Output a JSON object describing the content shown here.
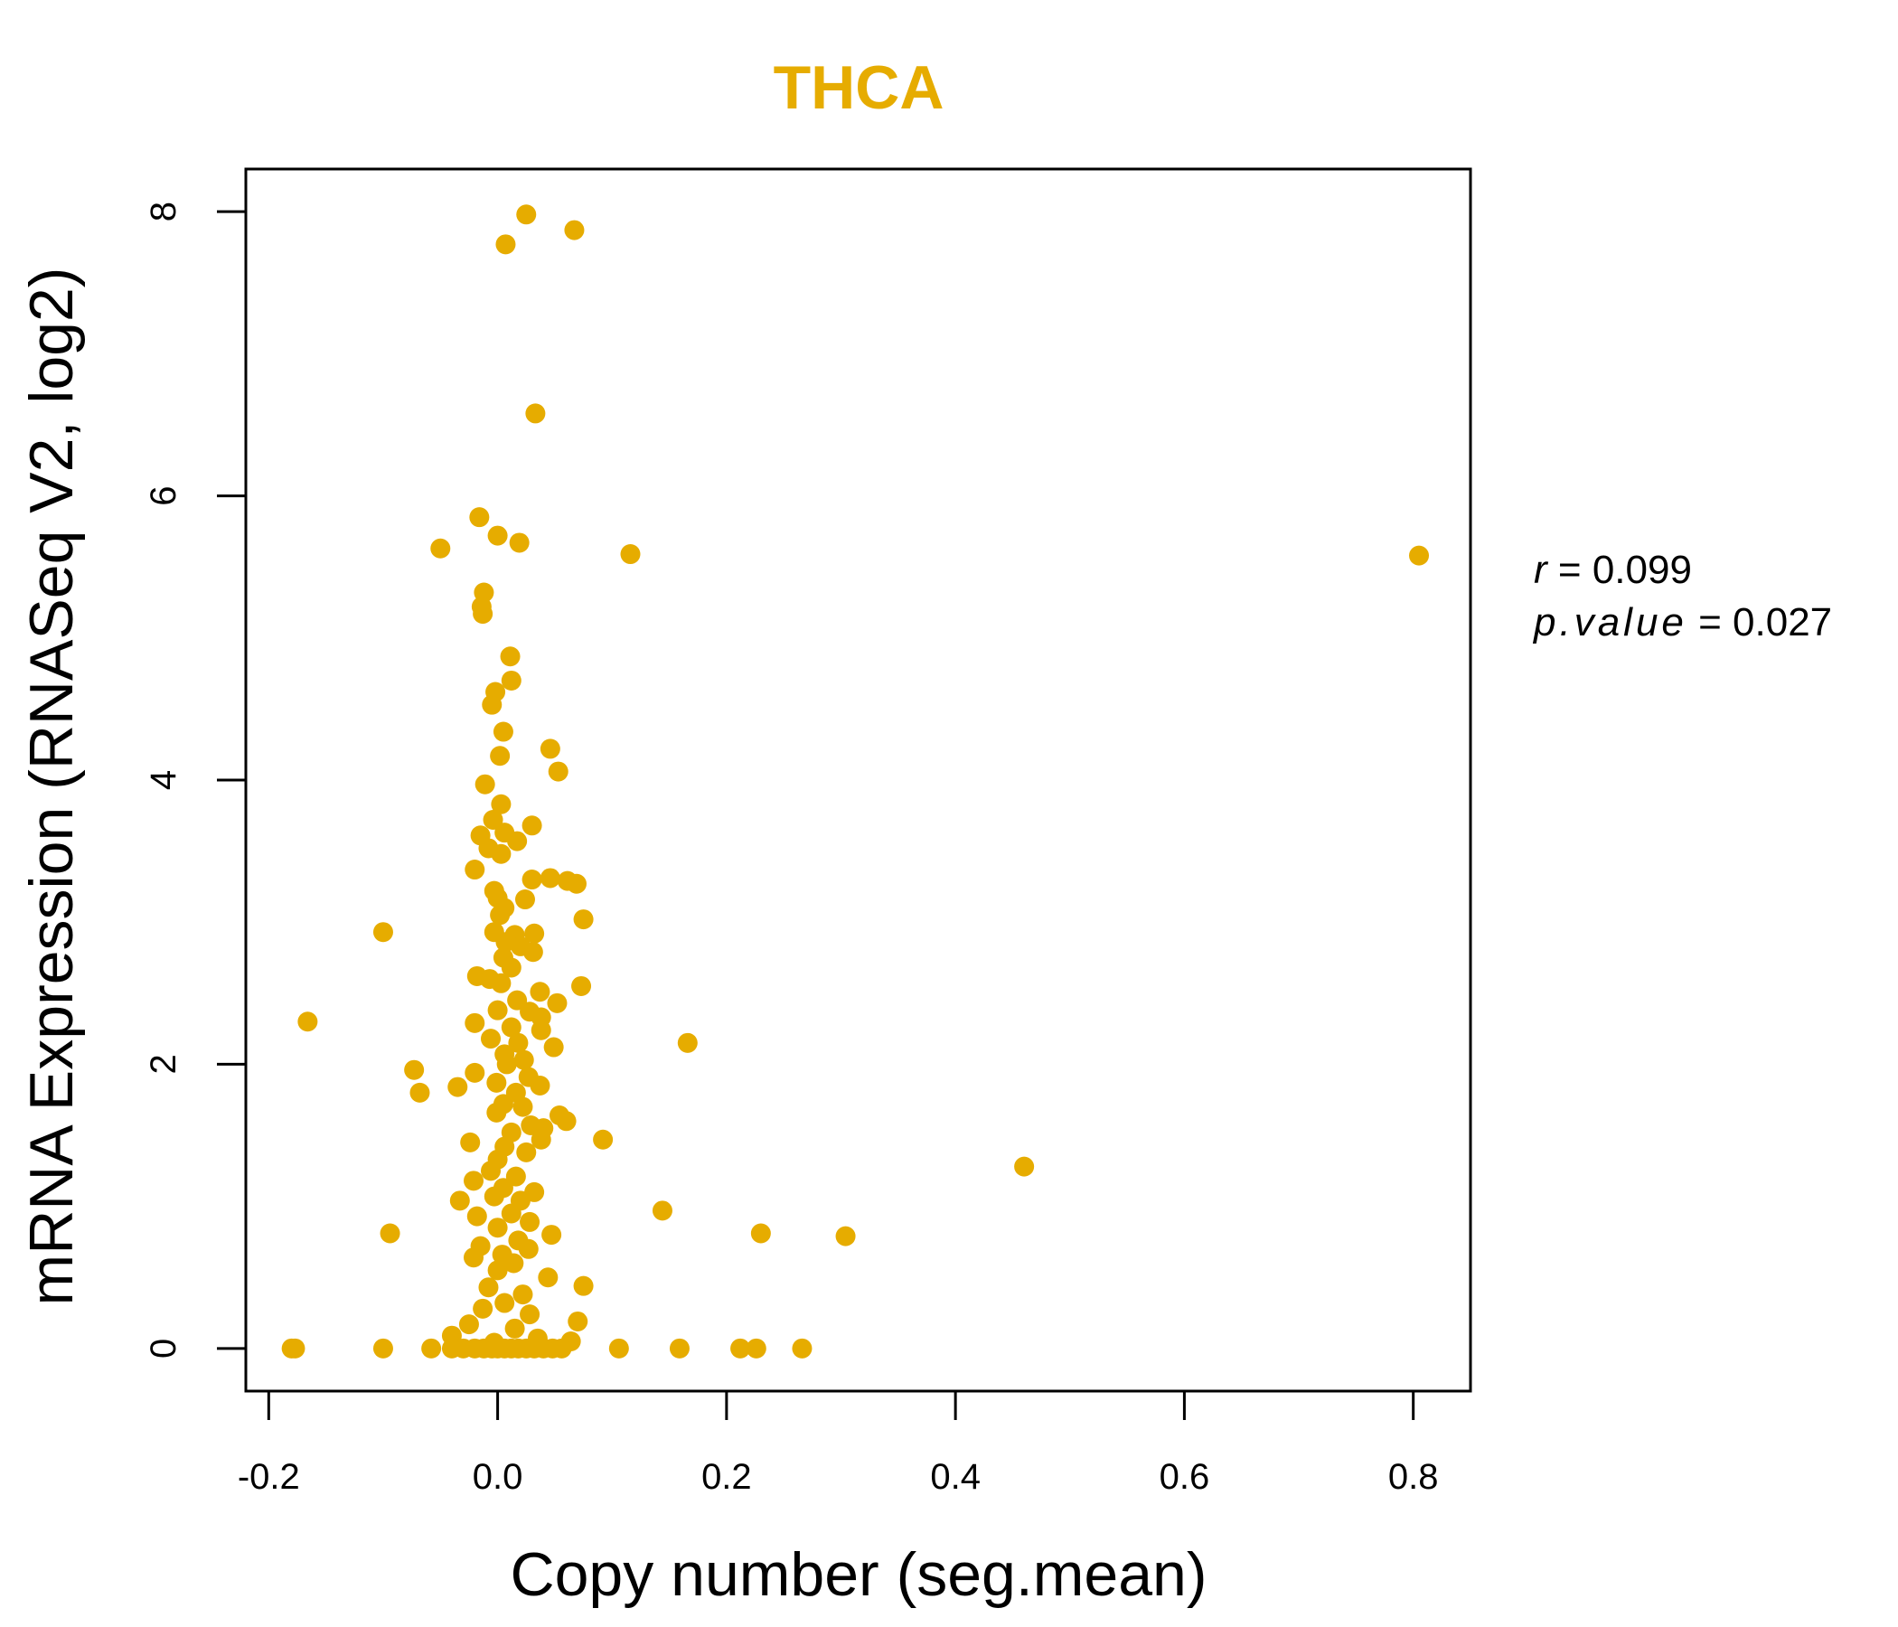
{
  "chart_data": {
    "type": "scatter",
    "title": "THCA",
    "xlabel": "Copy number (seg.mean)",
    "ylabel": "mRNA Expression (RNASeq V2, log2)",
    "xlim": [
      -0.22,
      0.85
    ],
    "ylim": [
      -0.3,
      8.3
    ],
    "xticks": [
      -0.2,
      0.0,
      0.2,
      0.4,
      0.6,
      0.8
    ],
    "xtick_labels": [
      "-0.2",
      "0.0",
      "0.2",
      "0.4",
      "0.6",
      "0.8"
    ],
    "yticks": [
      0,
      2,
      4,
      6,
      8
    ],
    "ytick_labels": [
      "0",
      "2",
      "4",
      "6",
      "8"
    ],
    "point_color": "#E6AC00",
    "title_color": "#E6AC00",
    "stats": {
      "r_label": "r",
      "r_value": "0.099",
      "p_label": "p.value",
      "p_value": "0.027"
    },
    "points": [
      [
        0.025,
        7.98
      ],
      [
        0.067,
        7.87
      ],
      [
        0.007,
        7.77
      ],
      [
        0.033,
        6.58
      ],
      [
        -0.016,
        5.85
      ],
      [
        -0.05,
        5.63
      ],
      [
        0.0,
        5.72
      ],
      [
        0.019,
        5.67
      ],
      [
        0.116,
        5.59
      ],
      [
        0.805,
        5.58
      ],
      [
        -0.012,
        5.32
      ],
      [
        -0.014,
        5.22
      ],
      [
        -0.013,
        5.17
      ],
      [
        0.011,
        4.87
      ],
      [
        0.012,
        4.7
      ],
      [
        -0.002,
        4.62
      ],
      [
        -0.005,
        4.53
      ],
      [
        0.005,
        4.34
      ],
      [
        0.046,
        4.22
      ],
      [
        0.002,
        4.17
      ],
      [
        0.053,
        4.06
      ],
      [
        -0.011,
        3.97
      ],
      [
        0.003,
        3.83
      ],
      [
        -0.004,
        3.72
      ],
      [
        0.03,
        3.68
      ],
      [
        0.006,
        3.63
      ],
      [
        -0.015,
        3.61
      ],
      [
        0.017,
        3.57
      ],
      [
        -0.008,
        3.52
      ],
      [
        0.003,
        3.48
      ],
      [
        -0.02,
        3.37
      ],
      [
        0.03,
        3.3
      ],
      [
        0.046,
        3.31
      ],
      [
        0.061,
        3.29
      ],
      [
        0.069,
        3.27
      ],
      [
        -0.003,
        3.22
      ],
      [
        0.0,
        3.17
      ],
      [
        0.024,
        3.16
      ],
      [
        0.006,
        3.1
      ],
      [
        0.002,
        3.05
      ],
      [
        0.075,
        3.02
      ],
      [
        -0.1,
        2.93
      ],
      [
        -0.003,
        2.93
      ],
      [
        0.015,
        2.91
      ],
      [
        0.032,
        2.92
      ],
      [
        0.007,
        2.86
      ],
      [
        0.02,
        2.83
      ],
      [
        0.031,
        2.79
      ],
      [
        0.005,
        2.75
      ],
      [
        0.012,
        2.68
      ],
      [
        -0.018,
        2.62
      ],
      [
        -0.007,
        2.6
      ],
      [
        0.003,
        2.57
      ],
      [
        0.073,
        2.55
      ],
      [
        0.037,
        2.51
      ],
      [
        0.017,
        2.45
      ],
      [
        0.052,
        2.43
      ],
      [
        0.0,
        2.38
      ],
      [
        0.028,
        2.37
      ],
      [
        0.038,
        2.33
      ],
      [
        -0.166,
        2.3
      ],
      [
        -0.02,
        2.29
      ],
      [
        0.012,
        2.26
      ],
      [
        0.038,
        2.24
      ],
      [
        -0.006,
        2.18
      ],
      [
        0.018,
        2.15
      ],
      [
        0.166,
        2.15
      ],
      [
        0.049,
        2.12
      ],
      [
        0.006,
        2.07
      ],
      [
        0.023,
        2.03
      ],
      [
        0.008,
        2.0
      ],
      [
        -0.073,
        1.96
      ],
      [
        -0.02,
        1.94
      ],
      [
        0.027,
        1.91
      ],
      [
        -0.001,
        1.87
      ],
      [
        -0.035,
        1.84
      ],
      [
        0.037,
        1.85
      ],
      [
        0.016,
        1.8
      ],
      [
        -0.068,
        1.8
      ],
      [
        0.005,
        1.72
      ],
      [
        0.022,
        1.7
      ],
      [
        -0.001,
        1.66
      ],
      [
        0.054,
        1.64
      ],
      [
        0.06,
        1.6
      ],
      [
        0.029,
        1.57
      ],
      [
        0.04,
        1.55
      ],
      [
        0.012,
        1.52
      ],
      [
        0.092,
        1.47
      ],
      [
        -0.024,
        1.45
      ],
      [
        0.038,
        1.47
      ],
      [
        0.006,
        1.42
      ],
      [
        0.025,
        1.38
      ],
      [
        0.0,
        1.33
      ],
      [
        0.46,
        1.28
      ],
      [
        -0.006,
        1.25
      ],
      [
        0.016,
        1.21
      ],
      [
        -0.021,
        1.18
      ],
      [
        0.005,
        1.13
      ],
      [
        0.032,
        1.1
      ],
      [
        -0.003,
        1.07
      ],
      [
        0.02,
        1.04
      ],
      [
        -0.033,
        1.04
      ],
      [
        0.144,
        0.97
      ],
      [
        0.012,
        0.95
      ],
      [
        -0.018,
        0.93
      ],
      [
        0.028,
        0.89
      ],
      [
        0.0,
        0.85
      ],
      [
        -0.094,
        0.81
      ],
      [
        0.047,
        0.8
      ],
      [
        0.23,
        0.81
      ],
      [
        0.304,
        0.79
      ],
      [
        0.018,
        0.76
      ],
      [
        -0.015,
        0.72
      ],
      [
        0.027,
        0.7
      ],
      [
        0.004,
        0.66
      ],
      [
        -0.021,
        0.64
      ],
      [
        0.014,
        0.6
      ],
      [
        0.0,
        0.55
      ],
      [
        0.044,
        0.5
      ],
      [
        0.075,
        0.44
      ],
      [
        -0.008,
        0.43
      ],
      [
        0.022,
        0.38
      ],
      [
        0.006,
        0.32
      ],
      [
        -0.013,
        0.28
      ],
      [
        0.028,
        0.24
      ],
      [
        0.07,
        0.19
      ],
      [
        -0.025,
        0.17
      ],
      [
        0.015,
        0.14
      ],
      [
        -0.04,
        0.09
      ],
      [
        0.035,
        0.07
      ],
      [
        0.064,
        0.05
      ],
      [
        -0.003,
        0.04
      ],
      [
        -0.18,
        0.0
      ],
      [
        -0.177,
        0.0
      ],
      [
        -0.1,
        0.0
      ],
      [
        -0.058,
        0.0
      ],
      [
        -0.04,
        0.0
      ],
      [
        -0.03,
        0.0
      ],
      [
        -0.02,
        0.0
      ],
      [
        -0.012,
        0.0
      ],
      [
        -0.005,
        0.0
      ],
      [
        0.0,
        0.0
      ],
      [
        0.006,
        0.0
      ],
      [
        0.012,
        0.0
      ],
      [
        0.018,
        0.0
      ],
      [
        0.025,
        0.0
      ],
      [
        0.032,
        0.0
      ],
      [
        0.04,
        0.0
      ],
      [
        0.048,
        0.0
      ],
      [
        0.056,
        0.0
      ],
      [
        0.106,
        0.0
      ],
      [
        0.159,
        0.0
      ],
      [
        0.212,
        0.0
      ],
      [
        0.226,
        0.0
      ],
      [
        0.266,
        0.0
      ]
    ]
  }
}
